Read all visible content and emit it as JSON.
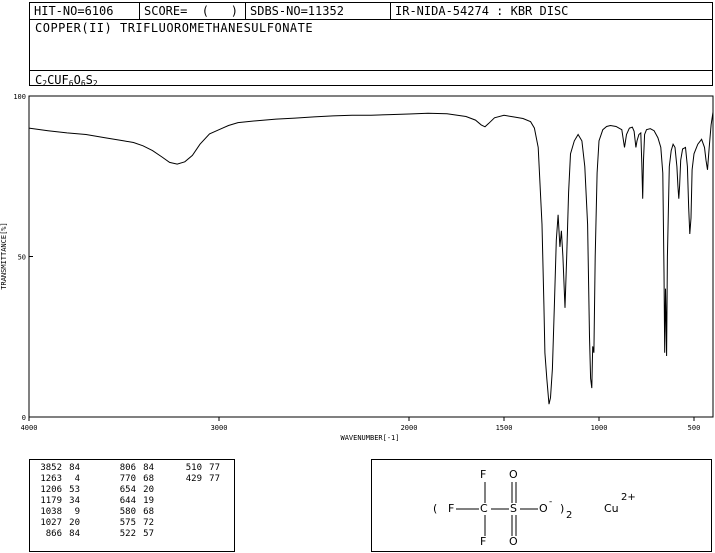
{
  "header": {
    "hit_no": "HIT-NO=6106",
    "score": "SCORE=  (   )",
    "sdbs_no": "SDBS-NO=11352",
    "ir_info": "IR-NIDA-54274 : KBR DISC",
    "compound_name": "COPPER(II) TRIFLUOROMETHANESULFONATE",
    "formula_parts": [
      {
        "t": "C",
        "sub": "2"
      },
      {
        "t": "CUF",
        "sub": "6"
      },
      {
        "t": "O",
        "sub": "6"
      },
      {
        "t": "S",
        "sub": "2"
      }
    ]
  },
  "chart_data": {
    "type": "line",
    "xlabel": "WAVENUMBER[-1]",
    "ylabel": "TRANSMITTANCE[%]",
    "xlim": [
      4000,
      400
    ],
    "ylim": [
      0,
      100
    ],
    "x_ticks": [
      4000,
      3000,
      2000,
      1500,
      1000,
      500
    ],
    "y_ticks": [
      0,
      50,
      100
    ],
    "grid": false,
    "series": [
      {
        "color": "#000000",
        "points": [
          [
            4000,
            90
          ],
          [
            3900,
            89.2
          ],
          [
            3800,
            88.5
          ],
          [
            3700,
            88
          ],
          [
            3600,
            87
          ],
          [
            3500,
            86
          ],
          [
            3450,
            85.5
          ],
          [
            3400,
            84.5
          ],
          [
            3350,
            83
          ],
          [
            3300,
            81
          ],
          [
            3260,
            79.3
          ],
          [
            3220,
            78.8
          ],
          [
            3180,
            79.5
          ],
          [
            3140,
            81.5
          ],
          [
            3100,
            85
          ],
          [
            3050,
            88.2
          ],
          [
            3000,
            89.5
          ],
          [
            2950,
            90.8
          ],
          [
            2900,
            91.7
          ],
          [
            2800,
            92.3
          ],
          [
            2700,
            92.8
          ],
          [
            2600,
            93.1
          ],
          [
            2500,
            93.5
          ],
          [
            2400,
            93.8
          ],
          [
            2300,
            94
          ],
          [
            2200,
            94
          ],
          [
            2100,
            94.2
          ],
          [
            2000,
            94.4
          ],
          [
            1900,
            94.6
          ],
          [
            1800,
            94.5
          ],
          [
            1700,
            93.6
          ],
          [
            1650,
            92.5
          ],
          [
            1620,
            91
          ],
          [
            1600,
            90.4
          ],
          [
            1580,
            91.5
          ],
          [
            1550,
            93.2
          ],
          [
            1500,
            94
          ],
          [
            1450,
            93.5
          ],
          [
            1400,
            93
          ],
          [
            1360,
            92
          ],
          [
            1340,
            90
          ],
          [
            1320,
            84
          ],
          [
            1300,
            60
          ],
          [
            1290,
            35
          ],
          [
            1285,
            20
          ],
          [
            1275,
            12
          ],
          [
            1263,
            4
          ],
          [
            1255,
            6
          ],
          [
            1245,
            15
          ],
          [
            1235,
            35
          ],
          [
            1225,
            55
          ],
          [
            1215,
            63
          ],
          [
            1206,
            53
          ],
          [
            1198,
            58
          ],
          [
            1190,
            50
          ],
          [
            1179,
            34
          ],
          [
            1170,
            50
          ],
          [
            1160,
            70
          ],
          [
            1150,
            82
          ],
          [
            1130,
            86
          ],
          [
            1110,
            88
          ],
          [
            1090,
            86
          ],
          [
            1075,
            78
          ],
          [
            1060,
            60
          ],
          [
            1050,
            25
          ],
          [
            1044,
            12
          ],
          [
            1038,
            9
          ],
          [
            1033,
            22
          ],
          [
            1027,
            20
          ],
          [
            1020,
            50
          ],
          [
            1010,
            76
          ],
          [
            1000,
            86
          ],
          [
            980,
            89.5
          ],
          [
            960,
            90.5
          ],
          [
            940,
            90.8
          ],
          [
            910,
            90.5
          ],
          [
            880,
            89.5
          ],
          [
            866,
            84
          ],
          [
            855,
            88
          ],
          [
            840,
            90
          ],
          [
            825,
            90.3
          ],
          [
            815,
            89
          ],
          [
            806,
            84
          ],
          [
            800,
            86
          ],
          [
            790,
            88
          ],
          [
            780,
            88.5
          ],
          [
            775,
            79
          ],
          [
            770,
            68
          ],
          [
            766,
            80
          ],
          [
            760,
            88
          ],
          [
            750,
            89.5
          ],
          [
            730,
            89.8
          ],
          [
            710,
            89.2
          ],
          [
            690,
            87
          ],
          [
            675,
            84
          ],
          [
            664,
            76
          ],
          [
            658,
            45
          ],
          [
            654,
            20
          ],
          [
            650,
            40
          ],
          [
            647,
            30
          ],
          [
            644,
            19
          ],
          [
            640,
            50
          ],
          [
            630,
            78
          ],
          [
            620,
            83
          ],
          [
            610,
            85
          ],
          [
            600,
            84
          ],
          [
            590,
            78
          ],
          [
            585,
            72
          ],
          [
            580,
            68
          ],
          [
            576,
            72
          ],
          [
            570,
            80
          ],
          [
            560,
            83.5
          ],
          [
            545,
            84
          ],
          [
            535,
            78
          ],
          [
            528,
            65
          ],
          [
            522,
            57
          ],
          [
            516,
            62
          ],
          [
            510,
            77
          ],
          [
            500,
            82
          ],
          [
            480,
            85
          ],
          [
            460,
            86.5
          ],
          [
            445,
            84
          ],
          [
            437,
            80
          ],
          [
            429,
            77
          ],
          [
            420,
            84
          ],
          [
            410,
            91
          ],
          [
            400,
            95
          ]
        ]
      }
    ]
  },
  "peaks": [
    [
      [
        "3852",
        "84"
      ],
      [
        "1263",
        "4"
      ],
      [
        "1206",
        "53"
      ],
      [
        "1179",
        "34"
      ],
      [
        "1038",
        "9"
      ],
      [
        "1027",
        "20"
      ],
      [
        "866",
        "84"
      ]
    ],
    [
      [
        "806",
        "84"
      ],
      [
        "770",
        "68"
      ],
      [
        "654",
        "20"
      ],
      [
        "644",
        "19"
      ],
      [
        "580",
        "68"
      ],
      [
        "575",
        "72"
      ],
      [
        "522",
        "57"
      ]
    ],
    [
      [
        "510",
        "77"
      ],
      [
        "429",
        "77"
      ]
    ]
  ],
  "structure": {
    "atoms": {
      "f_top": "F",
      "f_left": "F",
      "f_bottom": "F",
      "c": "C",
      "s": "S",
      "o_top": "O",
      "o_bottom": "O",
      "o_minus": "O",
      "minus": "-",
      "paren_open": "(",
      "paren_close": ")",
      "sub2": "2",
      "cu": "Cu",
      "charge": "2+"
    }
  }
}
